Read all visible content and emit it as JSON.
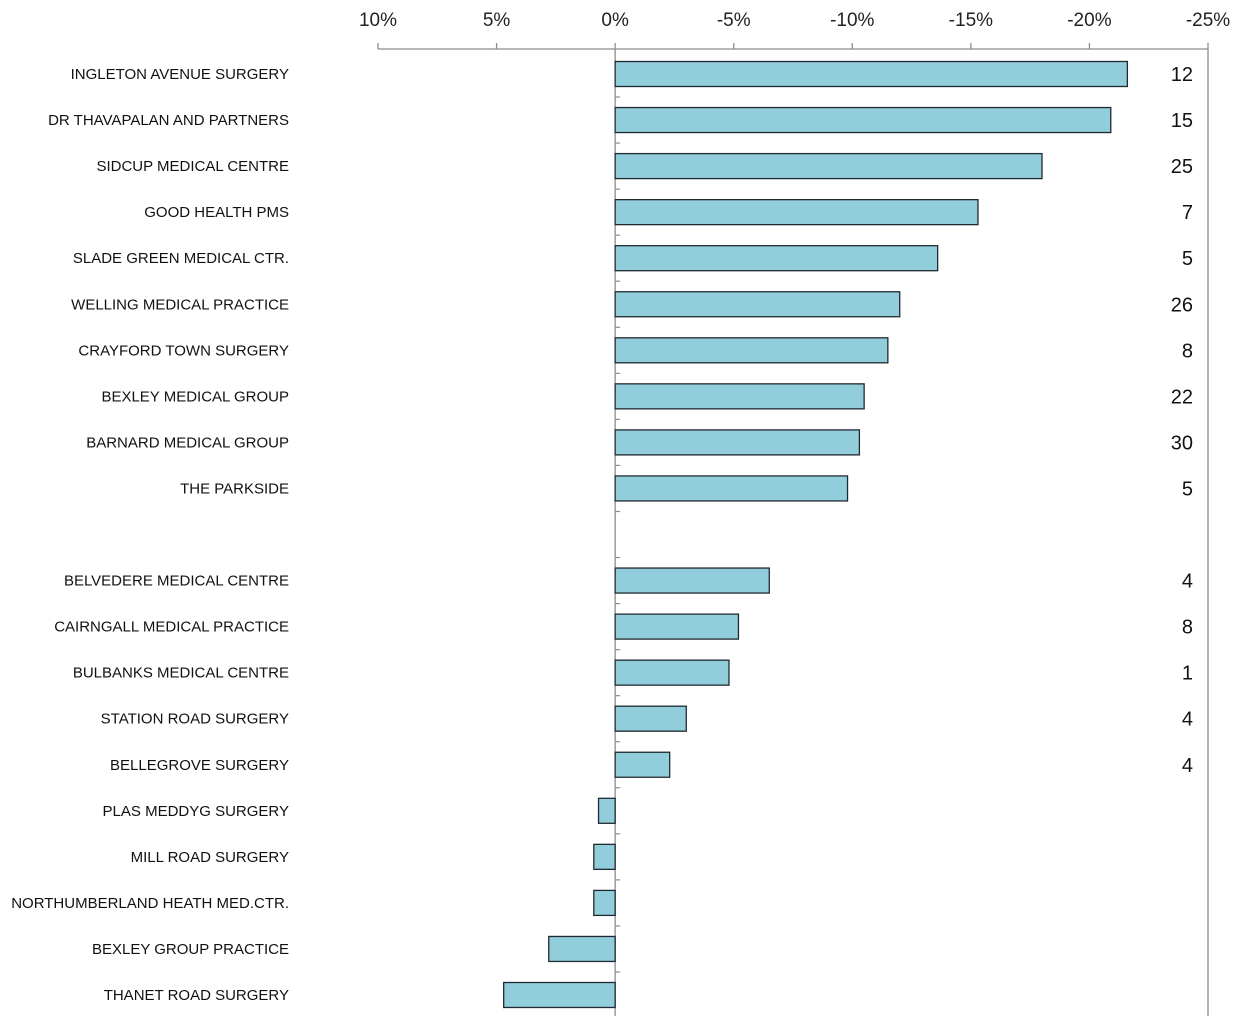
{
  "chart_data": {
    "type": "bar",
    "orientation": "horizontal",
    "x_axis": {
      "reversed": true,
      "range": [
        10,
        -25
      ],
      "ticks": [
        10,
        5,
        0,
        -5,
        -10,
        -15,
        -20,
        -25
      ],
      "tick_labels": [
        "10%",
        "5%",
        "0%",
        "-5%",
        "-10%",
        "-15%",
        "-20%",
        "-25%"
      ],
      "position": "top"
    },
    "bar_color": "#92CDDC",
    "bar_edge_color": "#1F2A30",
    "rows": [
      {
        "label": "INGLETON AVENUE SURGERY",
        "value": -21.6,
        "count": "12"
      },
      {
        "label": "DR THAVAPALAN AND PARTNERS",
        "value": -20.9,
        "count": "15"
      },
      {
        "label": "SIDCUP MEDICAL CENTRE",
        "value": -18.0,
        "count": "25"
      },
      {
        "label": "GOOD HEALTH PMS",
        "value": -15.3,
        "count": "7"
      },
      {
        "label": "SLADE GREEN MEDICAL CTR.",
        "value": -13.6,
        "count": "5"
      },
      {
        "label": "WELLING MEDICAL PRACTICE",
        "value": -12.0,
        "count": "26"
      },
      {
        "label": "CRAYFORD TOWN SURGERY",
        "value": -11.5,
        "count": "8"
      },
      {
        "label": "BEXLEY MEDICAL GROUP",
        "value": -10.5,
        "count": "22"
      },
      {
        "label": "BARNARD MEDICAL GROUP",
        "value": -10.3,
        "count": "30"
      },
      {
        "label": "THE PARKSIDE",
        "value": -9.8,
        "count": "5"
      },
      {
        "label": "",
        "value": null,
        "count": ""
      },
      {
        "label": "BELVEDERE MEDICAL CENTRE",
        "value": -6.5,
        "count": "4"
      },
      {
        "label": "CAIRNGALL MEDICAL PRACTICE",
        "value": -5.2,
        "count": "8"
      },
      {
        "label": "BULBANKS MEDICAL CENTRE",
        "value": -4.8,
        "count": "1"
      },
      {
        "label": "STATION ROAD SURGERY",
        "value": -3.0,
        "count": "4"
      },
      {
        "label": "BELLEGROVE SURGERY",
        "value": -2.3,
        "count": "4"
      },
      {
        "label": "PLAS MEDDYG SURGERY",
        "value": 0.7,
        "count": ""
      },
      {
        "label": "MILL ROAD SURGERY",
        "value": 0.9,
        "count": ""
      },
      {
        "label": "NORTHUMBERLAND HEATH MED.CTR.",
        "value": 0.9,
        "count": ""
      },
      {
        "label": "BEXLEY GROUP PRACTICE",
        "value": 2.8,
        "count": ""
      },
      {
        "label": "THANET ROAD SURGERY",
        "value": 4.7,
        "count": ""
      }
    ]
  }
}
